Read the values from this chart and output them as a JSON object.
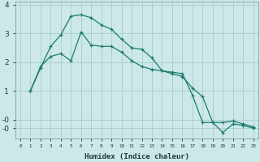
{
  "xlabel": "Humidex (Indice chaleur)",
  "bg_color": "#cce8e8",
  "grid_color": "#aacccc",
  "line_color": "#1a7a6e",
  "x_ticks": [
    0,
    1,
    2,
    3,
    4,
    5,
    6,
    7,
    8,
    9,
    10,
    11,
    12,
    13,
    14,
    15,
    16,
    17,
    18,
    19,
    20,
    21,
    22,
    23
  ],
  "yticks": [
    -0.3,
    0,
    1,
    2,
    3,
    4
  ],
  "ytick_labels": [
    "-0",
    "-0",
    "1",
    "2",
    "3",
    "4"
  ],
  "ylim": [
    -0.65,
    4.1
  ],
  "xlim": [
    -0.5,
    23.5
  ],
  "line1_x": [
    1,
    2,
    3,
    4,
    5,
    6,
    7,
    8,
    9,
    10,
    11,
    12,
    13,
    14,
    15,
    16,
    17,
    18,
    19,
    20,
    21,
    22,
    23
  ],
  "line1_y": [
    1.0,
    1.8,
    2.55,
    2.95,
    3.6,
    3.65,
    3.55,
    3.3,
    3.15,
    2.8,
    2.5,
    2.45,
    2.15,
    1.7,
    1.65,
    1.6,
    0.85,
    -0.1,
    -0.1,
    -0.45,
    -0.15,
    -0.2,
    -0.3
  ],
  "line2_x": [
    1,
    2,
    3,
    4,
    5,
    6,
    7,
    8,
    9,
    10,
    11,
    12,
    13,
    14,
    15,
    16,
    17,
    18,
    19,
    20,
    21,
    22,
    23
  ],
  "line2_y": [
    1.0,
    1.85,
    2.2,
    2.3,
    2.05,
    3.05,
    2.6,
    2.55,
    2.55,
    2.35,
    2.05,
    1.85,
    1.75,
    1.7,
    1.6,
    1.5,
    1.1,
    0.8,
    -0.1,
    -0.1,
    -0.05,
    -0.15,
    -0.25
  ]
}
